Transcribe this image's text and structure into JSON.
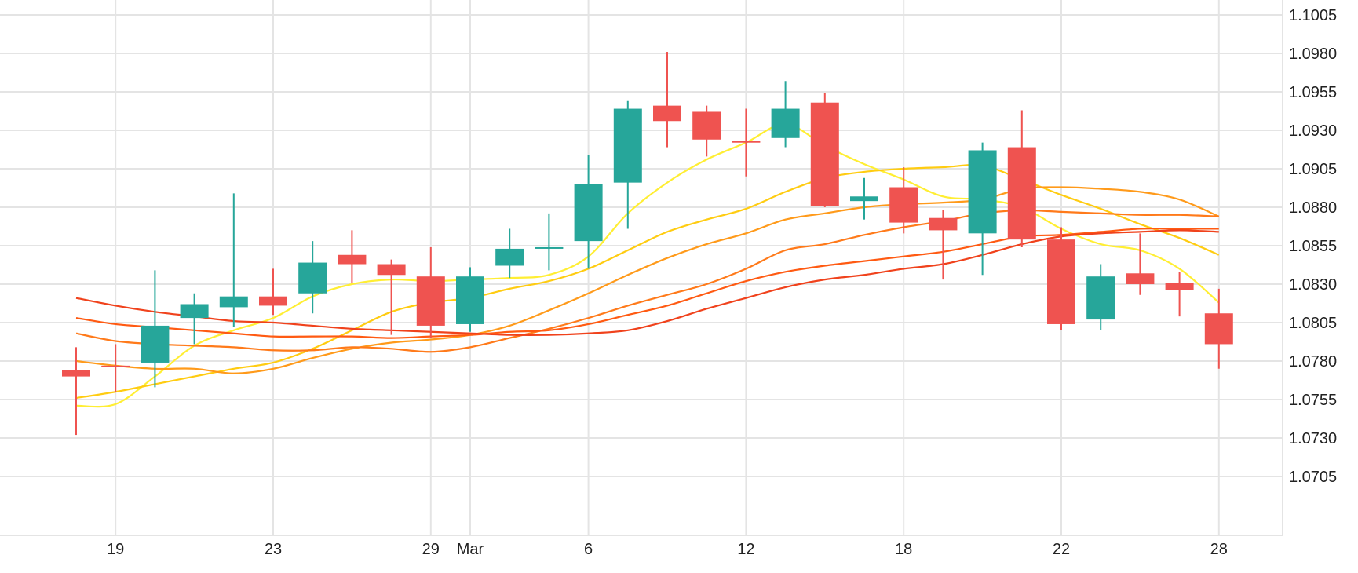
{
  "colors": {
    "up": "#26a69a",
    "down": "#ef5350",
    "grid": "#e4e4e4",
    "ma": [
      "#ffee33",
      "#ffcc11",
      "#ff9a1a",
      "#ff7a1a",
      "#ff5a12",
      "#f0421c"
    ]
  },
  "chart_data": {
    "type": "candlestick",
    "title": "",
    "xlabel": "",
    "ylabel": "",
    "ylim": [
      1.068,
      1.103
    ],
    "grid": true,
    "y_ticks": [
      "1.1005",
      "1.0980",
      "1.0955",
      "1.0930",
      "1.0905",
      "1.0880",
      "1.0855",
      "1.0830",
      "1.0805",
      "1.0780",
      "1.0755",
      "1.0730",
      "1.0705"
    ],
    "x_ticks": [
      {
        "label": "19",
        "index": 1
      },
      {
        "label": "23",
        "index": 5
      },
      {
        "label": "29",
        "index": 9
      },
      {
        "label": "Mar",
        "index": 10
      },
      {
        "label": "6",
        "index": 13
      },
      {
        "label": "12",
        "index": 17
      },
      {
        "label": "18",
        "index": 21
      },
      {
        "label": "22",
        "index": 25
      },
      {
        "label": "28",
        "index": 29
      }
    ],
    "candles": [
      {
        "o": 1.0774,
        "h": 1.0789,
        "l": 1.0732,
        "c": 1.077
      },
      {
        "o": 1.0777,
        "h": 1.0791,
        "l": 1.076,
        "c": 1.0776
      },
      {
        "o": 1.0779,
        "h": 1.0839,
        "l": 1.0763,
        "c": 1.0803
      },
      {
        "o": 1.0808,
        "h": 1.0824,
        "l": 1.0791,
        "c": 1.0817
      },
      {
        "o": 1.0815,
        "h": 1.0889,
        "l": 1.0802,
        "c": 1.0822
      },
      {
        "o": 1.0822,
        "h": 1.084,
        "l": 1.081,
        "c": 1.0816
      },
      {
        "o": 1.0824,
        "h": 1.0858,
        "l": 1.0811,
        "c": 1.0844
      },
      {
        "o": 1.0849,
        "h": 1.0865,
        "l": 1.0831,
        "c": 1.0843
      },
      {
        "o": 1.0843,
        "h": 1.0846,
        "l": 1.0797,
        "c": 1.0836
      },
      {
        "o": 1.0835,
        "h": 1.0854,
        "l": 1.0795,
        "c": 1.0803
      },
      {
        "o": 1.0804,
        "h": 1.0841,
        "l": 1.0799,
        "c": 1.0835
      },
      {
        "o": 1.0842,
        "h": 1.0866,
        "l": 1.0834,
        "c": 1.0853
      },
      {
        "o": 1.0854,
        "h": 1.0876,
        "l": 1.0839,
        "c": 1.0854
      },
      {
        "o": 1.0858,
        "h": 1.0914,
        "l": 1.084,
        "c": 1.0895
      },
      {
        "o": 1.0896,
        "h": 1.0949,
        "l": 1.0866,
        "c": 1.0944
      },
      {
        "o": 1.0946,
        "h": 1.0981,
        "l": 1.0919,
        "c": 1.0936
      },
      {
        "o": 1.0942,
        "h": 1.0946,
        "l": 1.0913,
        "c": 1.0924
      },
      {
        "o": 1.0923,
        "h": 1.0944,
        "l": 1.09,
        "c": 1.0922
      },
      {
        "o": 1.0925,
        "h": 1.0962,
        "l": 1.0919,
        "c": 1.0944
      },
      {
        "o": 1.0948,
        "h": 1.0954,
        "l": 1.088,
        "c": 1.0881
      },
      {
        "o": 1.0884,
        "h": 1.0899,
        "l": 1.0872,
        "c": 1.0887
      },
      {
        "o": 1.0893,
        "h": 1.0906,
        "l": 1.0863,
        "c": 1.087
      },
      {
        "o": 1.0873,
        "h": 1.0878,
        "l": 1.0833,
        "c": 1.0865
      },
      {
        "o": 1.0863,
        "h": 1.0922,
        "l": 1.0836,
        "c": 1.0917
      },
      {
        "o": 1.0919,
        "h": 1.0943,
        "l": 1.0854,
        "c": 1.0859
      },
      {
        "o": 1.0859,
        "h": 1.0867,
        "l": 1.08,
        "c": 1.0804
      },
      {
        "o": 1.0807,
        "h": 1.0843,
        "l": 1.08,
        "c": 1.0835
      },
      {
        "o": 1.0837,
        "h": 1.0863,
        "l": 1.0823,
        "c": 1.083
      },
      {
        "o": 1.0831,
        "h": 1.0838,
        "l": 1.0809,
        "c": 1.0826
      },
      {
        "o": 1.0811,
        "h": 1.0827,
        "l": 1.0775,
        "c": 1.0791
      }
    ],
    "series": [
      {
        "type": "line",
        "color_index": 0,
        "start_index": 0,
        "values": [
          1.0751,
          1.0752,
          1.077,
          1.079,
          1.08,
          1.0808,
          1.0822,
          1.083,
          1.0833,
          1.0832,
          1.0833,
          1.0834,
          1.0836,
          1.0848,
          1.0876,
          1.0896,
          1.0911,
          1.0922,
          1.0934,
          1.092,
          1.0908,
          1.0898,
          1.0887,
          1.0885,
          1.088,
          1.0866,
          1.0856,
          1.0852,
          1.084,
          1.0818
        ]
      },
      {
        "type": "line",
        "color_index": 1,
        "start_index": 0,
        "values": [
          1.0756,
          1.076,
          1.0765,
          1.077,
          1.0775,
          1.0779,
          1.0788,
          1.08,
          1.0812,
          1.0818,
          1.0821,
          1.0827,
          1.0832,
          1.084,
          1.0852,
          1.0864,
          1.0872,
          1.0879,
          1.089,
          1.0899,
          1.0903,
          1.0905,
          1.0906,
          1.0907,
          1.0898,
          1.0888,
          1.0879,
          1.0869,
          1.086,
          1.0849
        ]
      },
      {
        "type": "line",
        "color_index": 2,
        "start_index": 0,
        "values": [
          1.078,
          1.0777,
          1.0775,
          1.0775,
          1.0772,
          1.0775,
          1.0782,
          1.0788,
          1.0792,
          1.0794,
          1.0797,
          1.0803,
          1.0813,
          1.0824,
          1.0836,
          1.0847,
          1.0856,
          1.0863,
          1.0872,
          1.0876,
          1.088,
          1.0882,
          1.0883,
          1.0885,
          1.0892,
          1.0893,
          1.0892,
          1.089,
          1.0885,
          1.0874
        ]
      },
      {
        "type": "line",
        "color_index": 3,
        "start_index": 0,
        "values": [
          1.0798,
          1.0793,
          1.0791,
          1.079,
          1.0789,
          1.0787,
          1.0787,
          1.0789,
          1.0788,
          1.0786,
          1.0789,
          1.0795,
          1.0801,
          1.0808,
          1.0816,
          1.0823,
          1.083,
          1.084,
          1.0852,
          1.0856,
          1.0862,
          1.0867,
          1.0871,
          1.0876,
          1.0878,
          1.0877,
          1.0876,
          1.0875,
          1.0875,
          1.0874
        ]
      },
      {
        "type": "line",
        "color_index": 4,
        "start_index": 0,
        "values": [
          1.0808,
          1.0804,
          1.0802,
          1.08,
          1.0798,
          1.0796,
          1.0796,
          1.0796,
          1.0795,
          1.0796,
          1.0797,
          1.0799,
          1.08,
          1.0804,
          1.081,
          1.0816,
          1.0824,
          1.0832,
          1.0838,
          1.0842,
          1.0845,
          1.0848,
          1.0851,
          1.0856,
          1.0861,
          1.0862,
          1.0864,
          1.0866,
          1.0866,
          1.0866
        ]
      },
      {
        "type": "line",
        "color_index": 5,
        "start_index": 0,
        "values": [
          1.0821,
          1.0816,
          1.0812,
          1.0809,
          1.0806,
          1.0805,
          1.0803,
          1.0801,
          1.08,
          1.0799,
          1.0798,
          1.0797,
          1.0797,
          1.0798,
          1.08,
          1.0806,
          1.0814,
          1.0821,
          1.0828,
          1.0833,
          1.0836,
          1.084,
          1.0843,
          1.0849,
          1.0856,
          1.0861,
          1.0863,
          1.0864,
          1.0865,
          1.0864
        ]
      }
    ]
  }
}
